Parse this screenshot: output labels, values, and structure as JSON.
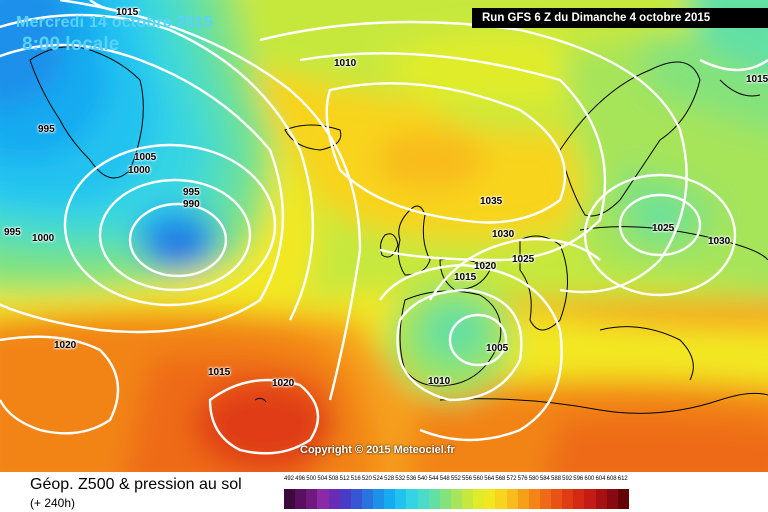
{
  "header": {
    "date": "Mercredi 14 octobre 2015",
    "time": "8:00 locale",
    "run": "Run GFS 6 Z du Dimanche 4 octobre 2015"
  },
  "copyright": "Copyright © 2015 Meteociel.fr",
  "footer": {
    "title": "Géop. Z500 & pression au sol",
    "subtitle": "(+ 240h)"
  },
  "isobar_labels": [
    "1015",
    "1010",
    "1015",
    "995",
    "1005",
    "1000",
    "995",
    "990",
    "995",
    "1000",
    "1035",
    "1030",
    "1025",
    "1025",
    "1030",
    "1020",
    "1015",
    "1020",
    "1005",
    "1010",
    "1015",
    "1020"
  ],
  "legend": {
    "values": [
      "492",
      "496",
      "500",
      "504",
      "508",
      "512",
      "516",
      "520",
      "524",
      "528",
      "532",
      "536",
      "540",
      "544",
      "548",
      "552",
      "556",
      "560",
      "564",
      "568",
      "572",
      "576",
      "580",
      "584",
      "588",
      "592",
      "596",
      "600",
      "604",
      "608",
      "612"
    ],
    "colors": [
      "#3d0a3d",
      "#5a1060",
      "#701a80",
      "#8a2aa6",
      "#6a2cb4",
      "#4a3ac8",
      "#3656d6",
      "#2a74e0",
      "#1e90ea",
      "#16aaf0",
      "#20c2f0",
      "#34d4e4",
      "#4adcc8",
      "#62e0a4",
      "#84e27c",
      "#a6e45a",
      "#c6e83e",
      "#e0ec2a",
      "#f2e822",
      "#f8d41e",
      "#f8bc1c",
      "#f6a01a",
      "#f28418",
      "#ee6a16",
      "#e85214",
      "#e03c14",
      "#d42a14",
      "#c41c14",
      "#a81012",
      "#880a10",
      "#620608"
    ]
  }
}
